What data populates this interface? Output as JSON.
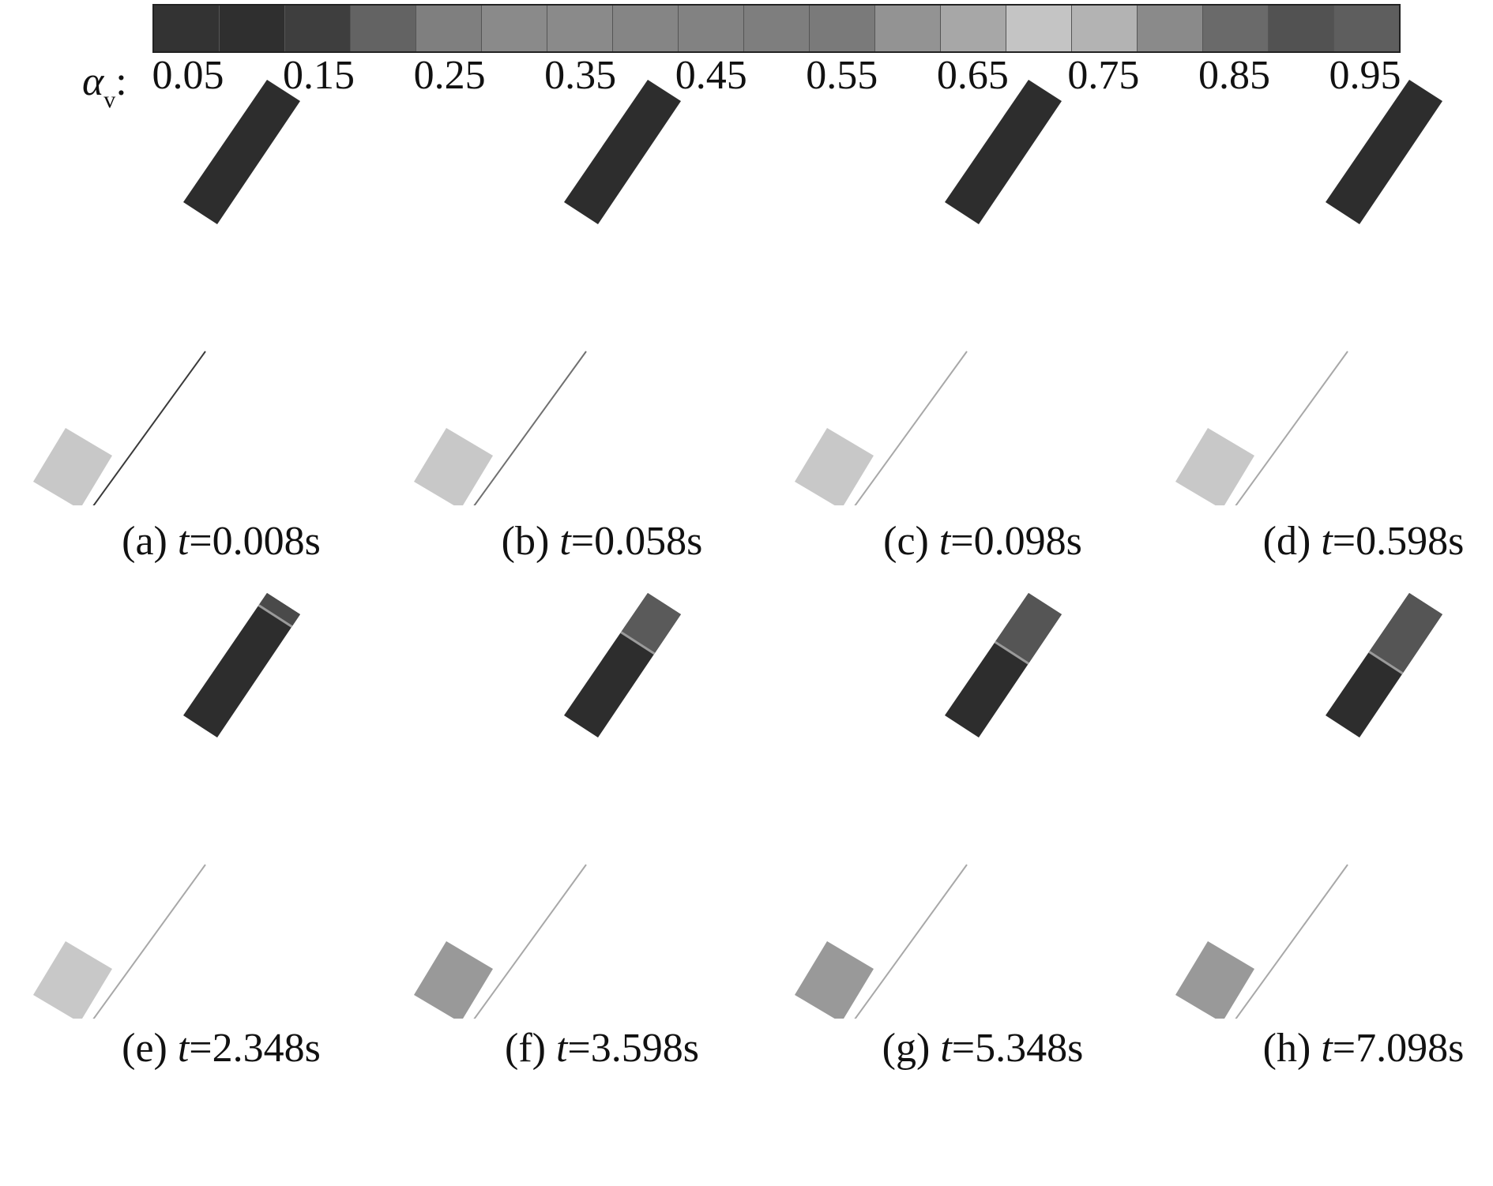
{
  "colorbar": {
    "variable_symbol": "α",
    "variable_subscript": "v",
    "separator": ":",
    "ticks": [
      "0.05",
      "0.15",
      "0.25",
      "0.35",
      "0.45",
      "0.55",
      "0.65",
      "0.75",
      "0.85",
      "0.95"
    ],
    "colors": [
      "#333333",
      "#2f2f2f",
      "#3e3e3e",
      "#636363",
      "#7f7f7f",
      "#8a8a8a",
      "#8a8a8a",
      "#858585",
      "#828282",
      "#7e7e7e",
      "#7a7a7a",
      "#939393",
      "#a7a7a7",
      "#c4c4c4",
      "#b3b3b3",
      "#8a8a8a",
      "#6a6a6a",
      "#525252",
      "#5e5e5e"
    ]
  },
  "panels": [
    {
      "label": "(a)",
      "time_var": "t",
      "time_text": "=0.008s",
      "top_tank_color": "#2d2d2d",
      "top_fill_fraction": 0,
      "upper_color": "#2d2d2d",
      "pipe_color": "#3a3a3a",
      "bottom_tank_color": "#c8c8c8"
    },
    {
      "label": "(b)",
      "time_var": "t",
      "time_text": "=0.058s",
      "top_tank_color": "#2d2d2d",
      "top_fill_fraction": 0,
      "upper_color": "#2d2d2d",
      "pipe_color": "#707070",
      "bottom_tank_color": "#c8c8c8"
    },
    {
      "label": "(c)",
      "time_var": "t",
      "time_text": "=0.098s",
      "top_tank_color": "#2d2d2d",
      "top_fill_fraction": 0,
      "upper_color": "#2d2d2d",
      "pipe_color": "#a8a8a8",
      "bottom_tank_color": "#c8c8c8"
    },
    {
      "label": "(d)",
      "time_var": "t",
      "time_text": "=0.598s",
      "top_tank_color": "#2d2d2d",
      "top_fill_fraction": 0,
      "upper_color": "#2d2d2d",
      "pipe_color": "#a8a8a8",
      "bottom_tank_color": "#c8c8c8"
    },
    {
      "label": "(e)",
      "time_var": "t",
      "time_text": "=2.348s",
      "top_tank_color": "#2d2d2d",
      "top_fill_fraction": 0.1,
      "upper_color": "#4a4a4a",
      "pipe_color": "#a8a8a8",
      "bottom_tank_color": "#c8c8c8"
    },
    {
      "label": "(f)",
      "time_var": "t",
      "time_text": "=3.598s",
      "top_tank_color": "#2d2d2d",
      "top_fill_fraction": 0.32,
      "upper_color": "#5a5a5a",
      "pipe_color": "#a8a8a8",
      "bottom_tank_color": "#999999"
    },
    {
      "label": "(g)",
      "time_var": "t",
      "time_text": "=5.348s",
      "top_tank_color": "#2d2d2d",
      "top_fill_fraction": 0.4,
      "upper_color": "#555555",
      "pipe_color": "#a8a8a8",
      "bottom_tank_color": "#999999"
    },
    {
      "label": "(h)",
      "time_var": "t",
      "time_text": "=7.098s",
      "top_tank_color": "#2d2d2d",
      "top_fill_fraction": 0.48,
      "upper_color": "#555555",
      "pipe_color": "#a8a8a8",
      "bottom_tank_color": "#999999"
    }
  ]
}
